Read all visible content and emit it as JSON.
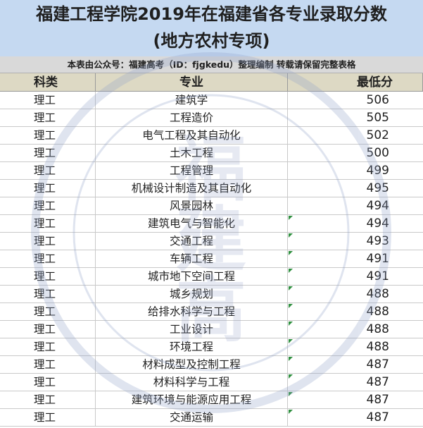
{
  "title": {
    "line1": "福建工程学院2019年在福建省各专业录取分数",
    "line2": "(地方农村专项)"
  },
  "source": "本表由公众号：福建高考（ID：fjgkedu）整理编制 转载请保留完整表格",
  "table": {
    "headers": [
      "科类",
      "专业",
      "最低分"
    ],
    "rows": [
      {
        "type": "理工",
        "major": "建筑学",
        "score": "506"
      },
      {
        "type": "理工",
        "major": "工程造价",
        "score": "505"
      },
      {
        "type": "理工",
        "major": "电气工程及其自动化",
        "score": "502"
      },
      {
        "type": "理工",
        "major": "土木工程",
        "score": "500"
      },
      {
        "type": "理工",
        "major": "工程管理",
        "score": "499"
      },
      {
        "type": "理工",
        "major": "机械设计制造及其自动化",
        "score": "495"
      },
      {
        "type": "理工",
        "major": "风景园林",
        "score": "494"
      },
      {
        "type": "理工",
        "major": "建筑电气与智能化",
        "score": "494"
      },
      {
        "type": "理工",
        "major": "交通工程",
        "score": "493"
      },
      {
        "type": "理工",
        "major": "车辆工程",
        "score": "491"
      },
      {
        "type": "理工",
        "major": "城市地下空间工程",
        "score": "491"
      },
      {
        "type": "理工",
        "major": "城乡规划",
        "score": "488"
      },
      {
        "type": "理工",
        "major": "给排水科学与工程",
        "score": "488"
      },
      {
        "type": "理工",
        "major": "工业设计",
        "score": "488"
      },
      {
        "type": "理工",
        "major": "环境工程",
        "score": "488"
      },
      {
        "type": "理工",
        "major": "材料成型及控制工程",
        "score": "487"
      },
      {
        "type": "理工",
        "major": "材料科学与工程",
        "score": "487"
      },
      {
        "type": "理工",
        "major": "建筑环境与能源应用工程",
        "score": "487"
      },
      {
        "type": "理工",
        "major": "交通运输",
        "score": "487"
      }
    ]
  },
  "watermark": {
    "center_text": "福建高考",
    "ring_text": "福建高考公众号",
    "id_text": "ID: fjgkedu",
    "color": "#b9c3dd"
  },
  "colors": {
    "title_bg": "#c5d9f1",
    "source_bg": "#d9d9d9",
    "header_bg": "#ddd9c4",
    "marker": "#2f8f3f"
  }
}
